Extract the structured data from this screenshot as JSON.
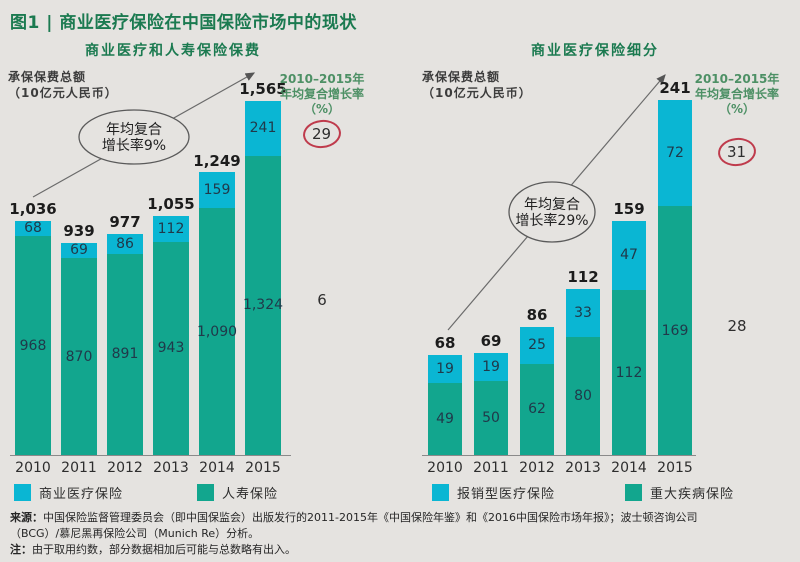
{
  "page_title": "图1 | 商业医疗保险在中国保险市场中的现状",
  "colors": {
    "teal": "#0ab6d3",
    "green": "#12a68e",
    "dark_green": "#1b7a50",
    "cagr_green": "#4d9065",
    "circle_red": "#bf3b4c",
    "background": "#e5e3e0"
  },
  "chart_data": [
    {
      "type": "bar",
      "stacked": true,
      "title": "商业医疗和人寿保险保费",
      "ylabel": "承保保费总额\n（10亿元人民币）",
      "categories": [
        "2010",
        "2011",
        "2012",
        "2013",
        "2014",
        "2015"
      ],
      "totals": [
        "1,036",
        "939",
        "977",
        "1,055",
        "1,249",
        "1,565"
      ],
      "series": [
        {
          "name": "商业医疗保险",
          "role": "teal",
          "values": [
            68,
            69,
            86,
            112,
            159,
            241
          ],
          "labels": [
            "68",
            "69",
            "86",
            "112",
            "159",
            "241"
          ]
        },
        {
          "name": "人寿保险",
          "role": "green",
          "values": [
            968,
            870,
            891,
            943,
            1090,
            1324
          ],
          "labels": [
            "968",
            "870",
            "891",
            "943",
            "1,090",
            "1,324"
          ]
        }
      ],
      "cagr_oval": [
        "年均复合",
        "增长率9%"
      ],
      "cagr_header": "2010–2015年\n年均复合增长率\n（%）",
      "cagr_circled": "29",
      "cagr_plain": "6",
      "legend_position": "bottom",
      "grid": false
    },
    {
      "type": "bar",
      "stacked": true,
      "title": "商业医疗保险细分",
      "ylabel": "承保保费总额\n（10亿元人民币）",
      "categories": [
        "2010",
        "2011",
        "2012",
        "2013",
        "2014",
        "2015"
      ],
      "totals": [
        "68",
        "69",
        "86",
        "112",
        "159",
        "241"
      ],
      "series": [
        {
          "name": "报销型医疗保险",
          "role": "teal",
          "values": [
            19,
            19,
            25,
            33,
            47,
            72
          ],
          "labels": [
            "19",
            "19",
            "25",
            "33",
            "47",
            "72"
          ]
        },
        {
          "name": "重大疾病保险",
          "role": "green",
          "values": [
            49,
            50,
            62,
            80,
            112,
            169
          ],
          "labels": [
            "49",
            "50",
            "62",
            "80",
            "112",
            "169"
          ]
        }
      ],
      "cagr_oval": [
        "年均复合",
        "增长率29%"
      ],
      "cagr_header": "2010–2015年\n年均复合增长率\n（%）",
      "cagr_circled": "31",
      "cagr_plain": "28",
      "legend_position": "bottom",
      "grid": false
    }
  ],
  "legend": [
    {
      "label": "商业医疗保险",
      "role": "teal"
    },
    {
      "label": "人寿保险",
      "role": "green"
    },
    {
      "label": "报销型医疗保险",
      "role": "teal"
    },
    {
      "label": "重大疾病保险",
      "role": "green"
    }
  ],
  "footer": {
    "source_label": "来源：",
    "source_line1": "中国保险监督管理委员会（即中国保监会）出版发行的2011-2015年《中国保险年鉴》和《2016中国保险市场年报》；波士顿咨询公司",
    "source_line2": "（BCG）/慕尼黑再保险公司（Munich Re）分析。",
    "note_label": "注：",
    "note_text": "由于取用约数，部分数据相加后可能与总数略有出入。"
  }
}
